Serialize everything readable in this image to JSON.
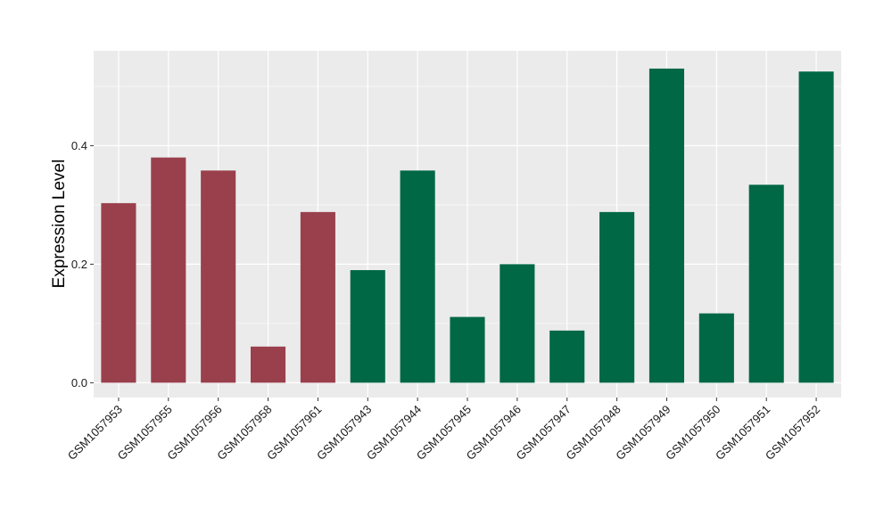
{
  "chart_data": {
    "type": "bar",
    "title": "",
    "xlabel": "",
    "ylabel": "Expression Level",
    "ylim": [
      -0.025,
      0.56
    ],
    "yticks": [
      0.0,
      0.2,
      0.4
    ],
    "ytick_labels": [
      "0.0",
      "0.2",
      "0.4"
    ],
    "grid": true,
    "colors": {
      "panel": "#ebebeb",
      "grid": "#ffffff",
      "group1": "#9a404d",
      "group2": "#006845"
    },
    "categories": [
      "GSM1057953",
      "GSM1057955",
      "GSM1057956",
      "GSM1057958",
      "GSM1057961",
      "GSM1057943",
      "GSM1057944",
      "GSM1057945",
      "GSM1057946",
      "GSM1057947",
      "GSM1057948",
      "GSM1057949",
      "GSM1057950",
      "GSM1057951",
      "GSM1057952"
    ],
    "values": [
      0.303,
      0.38,
      0.358,
      0.061,
      0.288,
      0.19,
      0.358,
      0.111,
      0.2,
      0.088,
      0.288,
      0.53,
      0.117,
      0.334,
      0.525
    ],
    "groups": [
      "group1",
      "group1",
      "group1",
      "group1",
      "group1",
      "group2",
      "group2",
      "group2",
      "group2",
      "group2",
      "group2",
      "group2",
      "group2",
      "group2",
      "group2"
    ]
  }
}
